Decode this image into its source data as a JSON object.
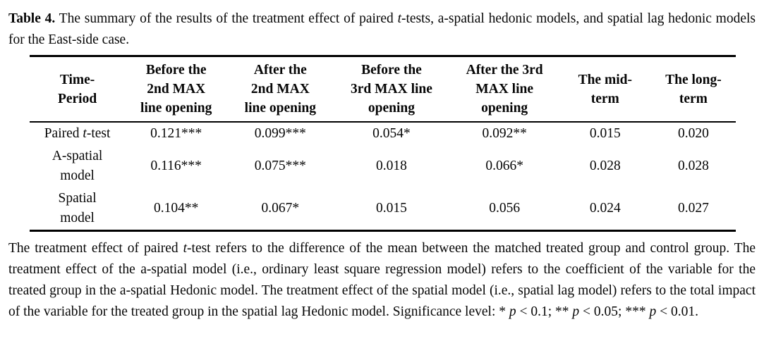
{
  "caption": {
    "label": "Table 4.",
    "text_before_italic": " The summary of the results of the treatment effect of paired ",
    "italic_term": "t",
    "text_after_italic": "-tests, a-spatial hedonic models, and spatial lag hedonic models for the East-side case."
  },
  "table": {
    "columns": [
      {
        "label": "Time-\nPeriod"
      },
      {
        "label": "Before the\n2nd MAX\nline opening"
      },
      {
        "label": "After the\n2nd MAX\nline opening"
      },
      {
        "label": "Before the\n3rd MAX line\nopening"
      },
      {
        "label": "After the 3rd\nMAX line\nopening"
      },
      {
        "label": "The mid-\nterm"
      },
      {
        "label": "The long-\nterm"
      }
    ],
    "rows": [
      {
        "label_prefix": "Paired ",
        "label_italic": "t",
        "label_suffix": "-test",
        "values": [
          "0.121***",
          "0.099***",
          "0.054*",
          "0.092**",
          "0.015",
          "0.020"
        ]
      },
      {
        "label": "A-spatial\nmodel",
        "values": [
          "0.116***",
          "0.075***",
          "0.018",
          "0.066*",
          "0.028",
          "0.028"
        ]
      },
      {
        "label": "Spatial\nmodel",
        "values": [
          "0.104**",
          "0.067*",
          "0.015",
          "0.056",
          "0.024",
          "0.027"
        ]
      }
    ]
  },
  "footnote": {
    "seg1": "The treatment effect of paired ",
    "it1": "t",
    "seg2": "-test refers to the difference of the mean between the matched treated group and control group. The treatment effect of the a-spatial model (i.e., ordinary least square regression model) refers to the coefficient of the variable for the treated group in the a-spatial Hedonic model. The treatment effect of the spatial model (i.e., spatial lag model) refers to the total impact of the variable for the treated group in the spatial lag Hedonic model. Significance level: * ",
    "it2": "p",
    "seg3": " < 0.1; ** ",
    "it3": "p",
    "seg4": " < 0.05; *** ",
    "it4": "p",
    "seg5": " < 0.01."
  }
}
